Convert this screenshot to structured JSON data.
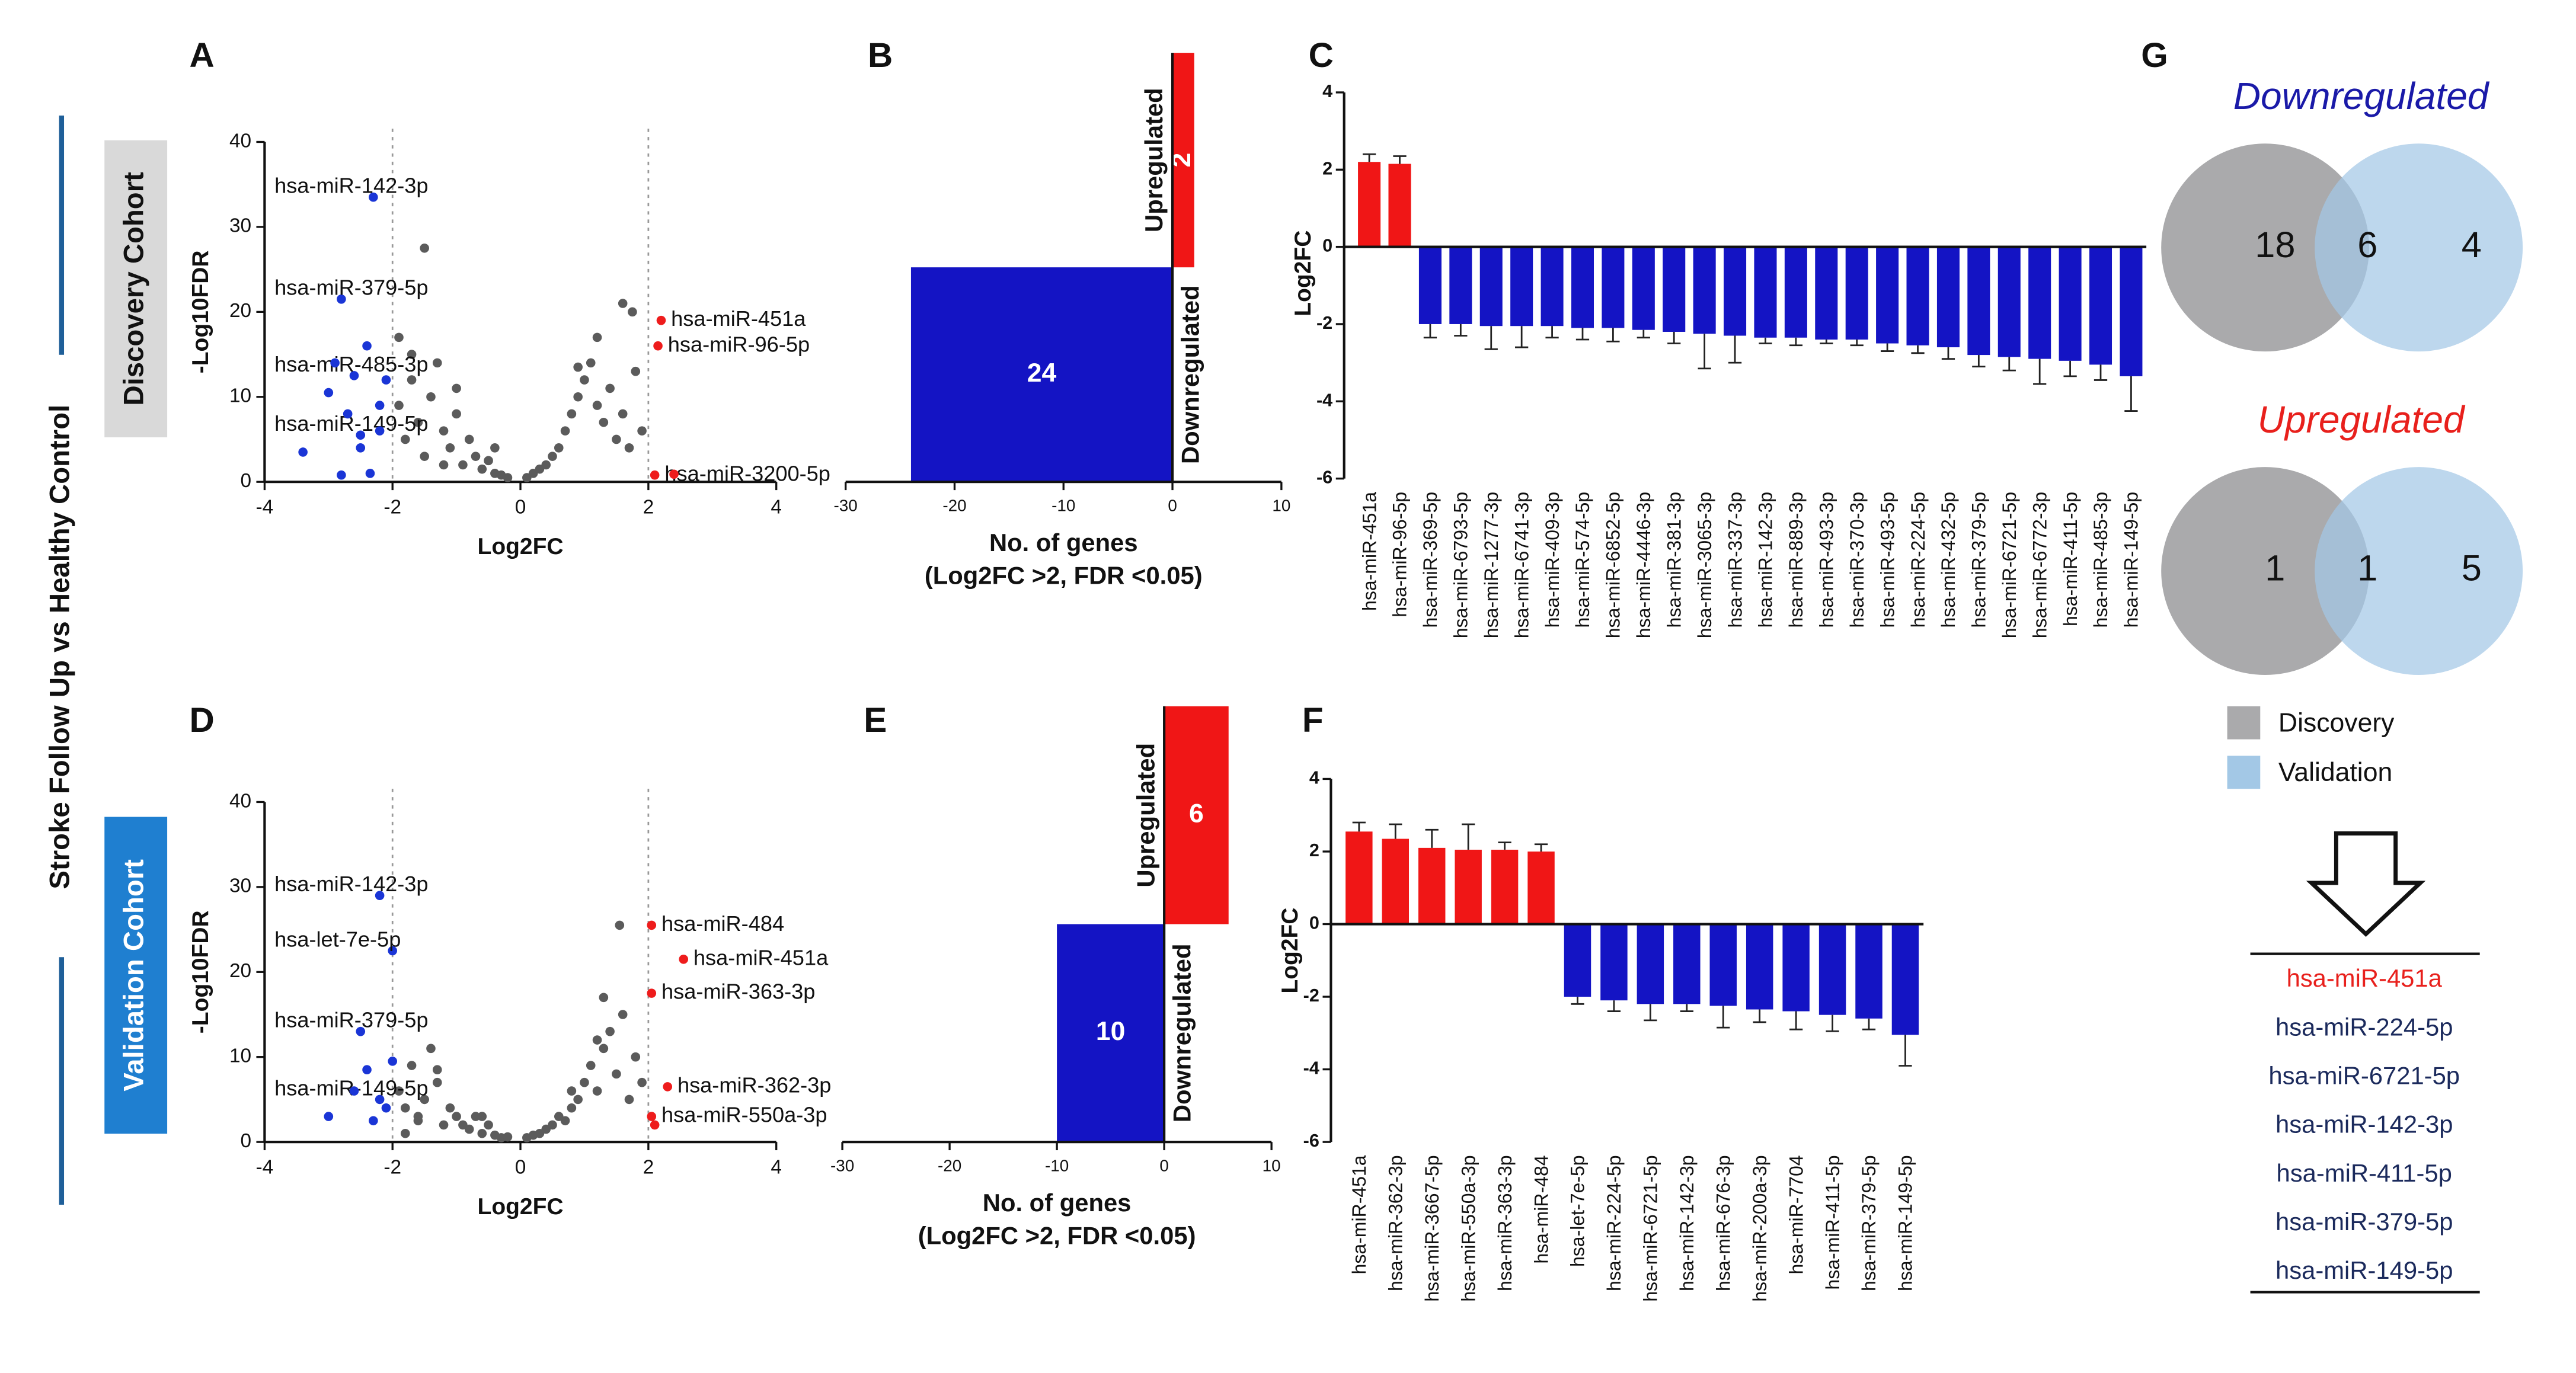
{
  "labels": {
    "side_title": "Stroke Follow Up vs Healthy Control",
    "discovery": "Discovery Cohort",
    "validation": "Validation Cohort"
  },
  "chart_data": [
    {
      "type": "volcano",
      "panel": "A",
      "xlabel": "Log2FC",
      "ylabel": "-Log10FDR",
      "xlim": [
        -4,
        4
      ],
      "ylim": [
        0,
        40
      ],
      "xticks": [
        -4,
        -2,
        0,
        2,
        4
      ],
      "yticks": [
        0,
        10,
        20,
        30,
        40
      ],
      "vlines": [
        -2,
        2
      ],
      "series": [
        {
          "color": "#5b5b5b",
          "x": [
            -1.9,
            -1.8,
            -1.7,
            -1.6,
            -1.5,
            -1.4,
            -1.3,
            -1.2,
            -1.1,
            -1.0,
            -0.9,
            -0.8,
            -0.7,
            -0.6,
            -0.5,
            -0.4,
            -0.3,
            -0.2,
            0.1,
            0.2,
            0.3,
            0.4,
            0.5,
            0.6,
            0.7,
            0.8,
            0.9,
            1.0,
            1.1,
            1.2,
            1.3,
            1.4,
            1.5,
            1.6,
            1.7,
            1.8,
            1.9,
            -1.5,
            1.2,
            1.6,
            -1.9,
            -1.7,
            -1.2,
            0.9,
            1.75,
            -0.4,
            -1.0
          ],
          "values": [
            9,
            5,
            12,
            7,
            3,
            10,
            14,
            6,
            4,
            8,
            2,
            5,
            3,
            1.5,
            2.5,
            1,
            0.8,
            0.5,
            0.5,
            1,
            1.5,
            2,
            3,
            4,
            6,
            8,
            10,
            12,
            14,
            9,
            7,
            11,
            5,
            8,
            4,
            13,
            6,
            27.5,
            17,
            21,
            17,
            15,
            2,
            13.5,
            20,
            4,
            11
          ]
        },
        {
          "color": "#1a35d6",
          "x": [
            -2.3,
            -2.8,
            -2.6,
            -2.5,
            -3.4,
            -3.0,
            -2.9,
            -2.7,
            -2.4,
            -2.2,
            -2.1,
            -2.5,
            -2.2,
            -2.35,
            -2.8
          ],
          "values": [
            33.5,
            21.5,
            12.5,
            5.5,
            3.5,
            10.5,
            14,
            8,
            16,
            9,
            12,
            4,
            6,
            1,
            0.8
          ],
          "point_labels": [
            "hsa-miR-142-3p",
            "hsa-miR-379-5p",
            "hsa-miR-485-3p",
            "hsa-miR-149-5p",
            null,
            null,
            null,
            null,
            null,
            null,
            null,
            null,
            null,
            null,
            null
          ]
        },
        {
          "color": "#ee1c1c",
          "x": [
            2.2,
            2.15,
            2.1,
            2.4
          ],
          "values": [
            19,
            16,
            0.8,
            0.9
          ],
          "point_labels": [
            "hsa-miR-451a",
            "hsa-miR-96-5p",
            "hsa-miR-3200-5p",
            null
          ]
        }
      ]
    },
    {
      "type": "barh",
      "panel": "B",
      "xlabel": [
        "No. of genes",
        "(Log2FC >2, FDR <0.05)"
      ],
      "xlim": [
        -30,
        10
      ],
      "xticks": [
        -30,
        -20,
        -10,
        0,
        10
      ],
      "categories": [
        "Upregulated",
        "Downregulated"
      ],
      "values": [
        2,
        -24
      ],
      "value_labels": [
        "2",
        "24"
      ],
      "colors": [
        "#f01616",
        "#1414c4"
      ]
    },
    {
      "type": "bar",
      "panel": "C",
      "ylabel": "Log2FC",
      "ylim": [
        -6,
        4
      ],
      "yticks": [
        -6,
        -4,
        -2,
        0,
        2,
        4
      ],
      "positive_color": "#f01616",
      "negative_color": "#1414c4",
      "categories": [
        "hsa-miR-451a",
        "hsa-miR-96-5p",
        "hsa-miR-369-5p",
        "hsa-miR-6793-5p",
        "hsa-miR-1277-3p",
        "hsa-miR-6741-3p",
        "hsa-miR-409-3p",
        "hsa-miR-574-5p",
        "hsa-miR-6852-5p",
        "hsa-miR-4446-3p",
        "hsa-miR-381-3p",
        "hsa-miR-3065-3p",
        "hsa-miR-337-3p",
        "hsa-miR-142-3p",
        "hsa-miR-889-3p",
        "hsa-miR-493-3p",
        "hsa-miR-370-3p",
        "hsa-miR-493-5p",
        "hsa-miR-224-5p",
        "hsa-miR-432-5p",
        "hsa-miR-379-5p",
        "hsa-miR-6721-5p",
        "hsa-miR-6772-3p",
        "hsa-miR-411-5p",
        "hsa-miR-485-3p",
        "hsa-miR-149-5p"
      ],
      "values": [
        2.2,
        2.15,
        -2.0,
        -2.0,
        -2.05,
        -2.05,
        -2.05,
        -2.1,
        -2.1,
        -2.15,
        -2.2,
        -2.25,
        -2.3,
        -2.35,
        -2.35,
        -2.4,
        -2.4,
        -2.5,
        -2.55,
        -2.6,
        -2.8,
        -2.85,
        -2.9,
        -2.95,
        -3.05,
        -3.35
      ],
      "errors": [
        0.2,
        0.2,
        0.35,
        0.3,
        0.6,
        0.55,
        0.3,
        0.3,
        0.35,
        0.2,
        0.3,
        0.9,
        0.7,
        0.15,
        0.2,
        0.1,
        0.15,
        0.2,
        0.2,
        0.3,
        0.3,
        0.35,
        0.65,
        0.4,
        0.4,
        0.9
      ]
    },
    {
      "type": "volcano",
      "panel": "D",
      "xlabel": "Log2FC",
      "ylabel": "-Log10FDR",
      "xlim": [
        -4,
        4
      ],
      "ylim": [
        0,
        40
      ],
      "xticks": [
        -4,
        -2,
        0,
        2,
        4
      ],
      "yticks": [
        0,
        10,
        20,
        30,
        40
      ],
      "vlines": [
        -2,
        2
      ],
      "series": [
        {
          "color": "#5b5b5b",
          "x": [
            -1.9,
            -1.8,
            -1.7,
            -1.6,
            -1.5,
            -1.4,
            -1.3,
            -1.2,
            -1.1,
            -1.0,
            -0.9,
            -0.8,
            -0.7,
            -0.6,
            -0.5,
            -0.4,
            -0.3,
            -0.2,
            0.1,
            0.2,
            0.3,
            0.4,
            0.5,
            0.6,
            0.7,
            0.8,
            0.9,
            1.0,
            1.1,
            1.2,
            1.3,
            1.4,
            1.5,
            1.6,
            1.7,
            1.8,
            1.9,
            1.55,
            -1.3,
            -1.6,
            1.3,
            -1.8,
            0.8,
            1.2,
            -0.6
          ],
          "values": [
            6,
            4,
            9,
            3,
            5,
            11,
            7,
            2,
            4,
            3,
            2,
            1.5,
            3,
            1,
            2,
            0.8,
            0.5,
            0.6,
            0.5,
            0.8,
            1,
            1.5,
            2,
            3,
            2.5,
            4,
            5,
            7,
            9,
            6,
            11,
            13,
            8,
            15,
            5,
            10,
            7,
            25.5,
            8.5,
            2.5,
            17,
            1,
            6,
            12,
            3
          ]
        },
        {
          "color": "#1a35d6",
          "x": [
            -2.2,
            -2.0,
            -2.5,
            -2.2,
            -3.0,
            -2.4,
            -2.6,
            -2.1,
            -2.3,
            -2.0
          ],
          "values": [
            29,
            22.5,
            13,
            5,
            3,
            8.5,
            6,
            4,
            2.5,
            9.5
          ],
          "point_labels": [
            "hsa-miR-142-3p",
            "hsa-let-7e-5p",
            "hsa-miR-379-5p",
            "hsa-miR-149-5p",
            null,
            null,
            null,
            null,
            null,
            null
          ]
        },
        {
          "color": "#ee1c1c",
          "x": [
            2.05,
            2.55,
            2.05,
            2.3,
            2.05,
            2.1
          ],
          "values": [
            25.5,
            21.5,
            17.5,
            6.5,
            3,
            2
          ],
          "point_labels": [
            "hsa-miR-484",
            "hsa-miR-451a",
            "hsa-miR-363-3p",
            "hsa-miR-362-3p",
            "hsa-miR-550a-3p",
            null
          ]
        }
      ]
    },
    {
      "type": "barh",
      "panel": "E",
      "xlabel": [
        "No. of genes",
        "(Log2FC >2, FDR <0.05)"
      ],
      "xlim": [
        -30,
        10
      ],
      "xticks": [
        -30,
        -20,
        -10,
        0,
        10
      ],
      "categories": [
        "Upregulated",
        "Downregulated"
      ],
      "values": [
        6,
        -10
      ],
      "value_labels": [
        "6",
        "10"
      ],
      "colors": [
        "#f01616",
        "#1414c4"
      ]
    },
    {
      "type": "bar",
      "panel": "F",
      "ylabel": "Log2FC",
      "ylim": [
        -6,
        4
      ],
      "yticks": [
        -6,
        -4,
        -2,
        0,
        2,
        4
      ],
      "positive_color": "#f01616",
      "negative_color": "#1414c4",
      "categories": [
        "hsa-miR-451a",
        "hsa-miR-362-3p",
        "hsa-miR-3667-5p",
        "hsa-miR-550a-3p",
        "hsa-miR-363-3p",
        "hsa-miR-484",
        "hsa-let-7e-5p",
        "hsa-miR-224-5p",
        "hsa-miR-6721-5p",
        "hsa-miR-142-3p",
        "hsa-miR-676-3p",
        "hsa-miR-200a-3p",
        "hsa-miR-7704",
        "hsa-miR-411-5p",
        "hsa-miR-379-5p",
        "hsa-miR-149-5p"
      ],
      "values": [
        2.55,
        2.35,
        2.1,
        2.05,
        2.05,
        2.0,
        -2.0,
        -2.1,
        -2.2,
        -2.2,
        -2.25,
        -2.35,
        -2.4,
        -2.5,
        -2.6,
        -3.05
      ],
      "errors": [
        0.25,
        0.4,
        0.5,
        0.7,
        0.2,
        0.2,
        0.2,
        0.3,
        0.45,
        0.2,
        0.6,
        0.35,
        0.5,
        0.45,
        0.3,
        0.85
      ]
    },
    {
      "type": "venn",
      "panel": "G",
      "diagrams": [
        {
          "title": "Downregulated",
          "title_color": "#1a1aa8",
          "values": [
            18,
            6,
            4
          ]
        },
        {
          "title": "Upregulated",
          "title_color": "#e8201c",
          "values": [
            1,
            1,
            5
          ]
        }
      ],
      "series": [
        {
          "name": "Discovery",
          "color": "#aaaaac"
        },
        {
          "name": "Validation",
          "color": "#a3c8e6"
        }
      ],
      "list": [
        {
          "text": "hsa-miR-451a",
          "color": "#e8201c"
        },
        {
          "text": "hsa-miR-224-5p",
          "color": "#1b2a5c"
        },
        {
          "text": "hsa-miR-6721-5p",
          "color": "#1b2a5c"
        },
        {
          "text": "hsa-miR-142-3p",
          "color": "#1b2a5c"
        },
        {
          "text": "hsa-miR-411-5p",
          "color": "#1b2a5c"
        },
        {
          "text": "hsa-miR-379-5p",
          "color": "#1b2a5c"
        },
        {
          "text": "hsa-miR-149-5p",
          "color": "#1b2a5c"
        }
      ]
    }
  ]
}
